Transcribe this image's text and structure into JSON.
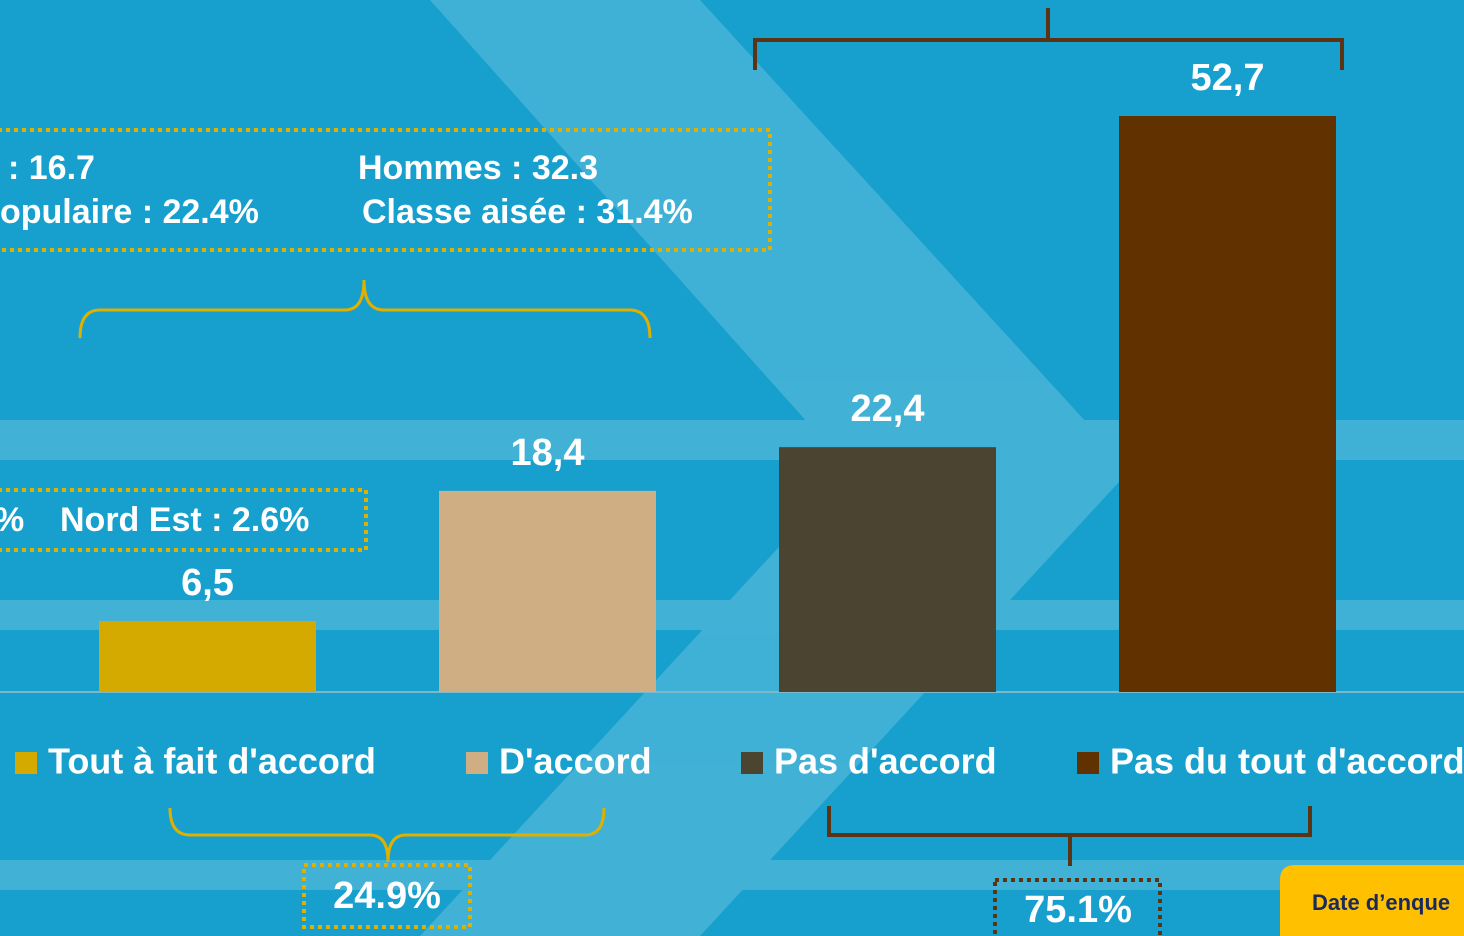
{
  "chart_data": {
    "type": "bar",
    "categories": [
      "Tout à fait d'accord",
      "D'accord",
      "Pas d'accord",
      "Pas du tout d'accord"
    ],
    "values": [
      6.5,
      18.4,
      22.4,
      52.7
    ],
    "value_labels": [
      "6,5",
      "18,4",
      "22,4",
      "52,7"
    ],
    "colors": [
      "#d4a900",
      "#cfae83",
      "#4a4430",
      "#623100"
    ],
    "annotations": [
      ": 16.7",
      "Hommes : 32.3",
      "opulaire : 22.4%",
      "Classe aisée : 31.4%",
      "%",
      "Nord Est : 2.6%",
      "24.9%",
      "75.1%",
      "Date d’enque"
    ]
  }
}
